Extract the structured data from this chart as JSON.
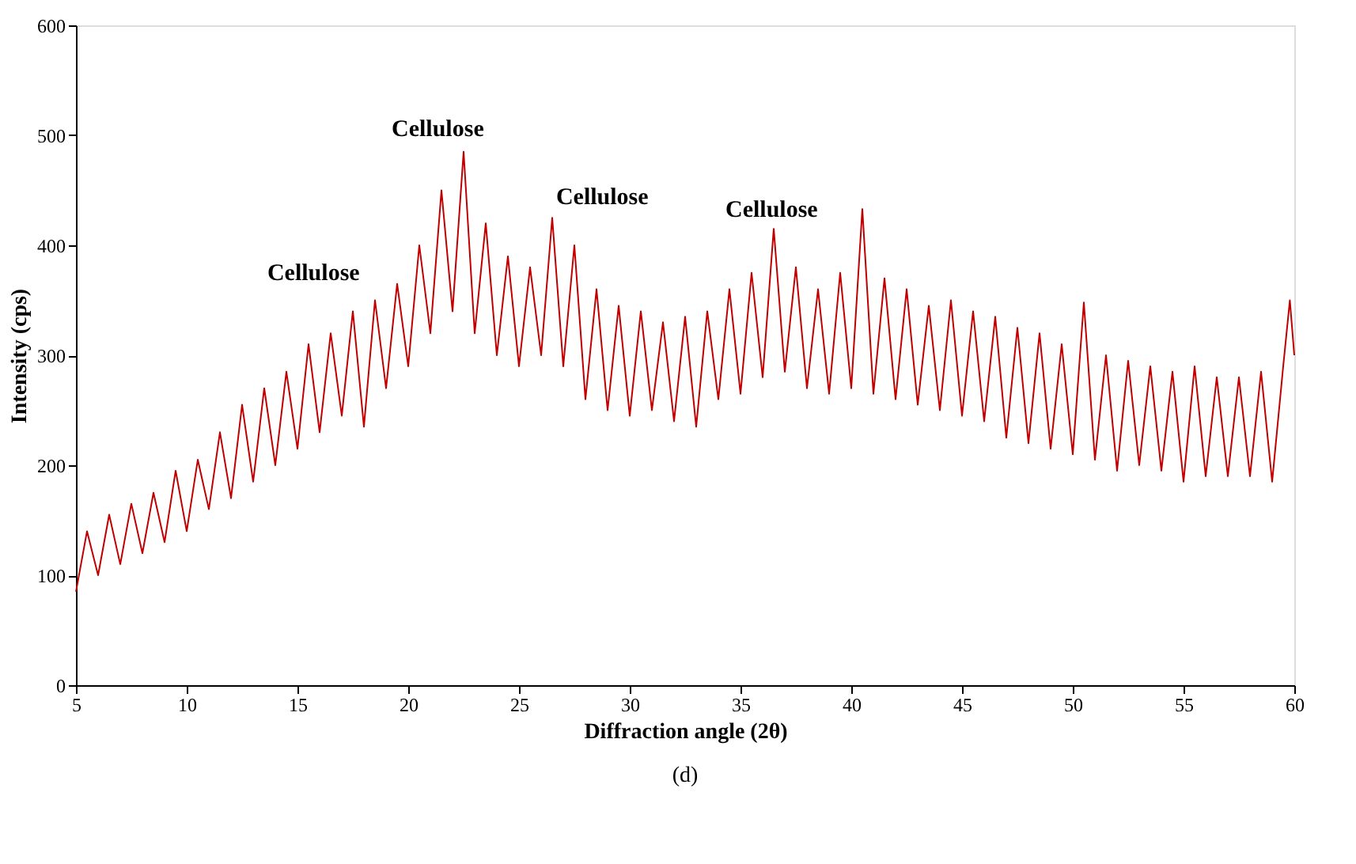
{
  "chart_data": {
    "type": "line",
    "xlabel": "Diffraction angle (2θ)",
    "ylabel": "Intensity (cps)",
    "x": [
      5,
      5.5,
      6,
      6.5,
      7,
      7.5,
      8,
      8.5,
      9,
      9.5,
      10,
      10.5,
      11,
      11.5,
      12,
      12.5,
      13,
      13.5,
      14,
      14.5,
      15,
      15.5,
      16,
      16.5,
      17,
      17.5,
      18,
      18.5,
      19,
      19.5,
      20,
      20.5,
      21,
      21.5,
      22,
      22.5,
      23,
      23.5,
      24,
      24.5,
      25,
      25.5,
      26,
      26.5,
      27,
      27.5,
      28,
      28.5,
      29,
      29.5,
      30,
      30.5,
      31,
      31.5,
      32,
      32.5,
      33,
      33.5,
      34,
      34.5,
      35,
      35.5,
      36,
      36.5,
      37,
      37.5,
      38,
      38.5,
      39,
      39.5,
      40,
      40.5,
      41,
      41.5,
      42,
      42.5,
      43,
      43.5,
      44,
      44.5,
      45,
      45.5,
      46,
      46.5,
      47,
      47.5,
      48,
      48.5,
      49,
      49.5,
      50,
      50.5,
      51,
      51.5,
      52,
      52.5,
      53,
      53.5,
      54,
      54.5,
      55,
      55.5,
      56,
      56.5,
      57,
      57.5,
      58,
      58.5,
      59,
      59.5,
      59.8,
      60
    ],
    "series": [
      {
        "color": "#c00000",
        "values": [
          85,
          140,
          100,
          155,
          110,
          165,
          120,
          175,
          130,
          195,
          140,
          205,
          160,
          230,
          170,
          255,
          185,
          270,
          200,
          285,
          215,
          310,
          230,
          320,
          245,
          340,
          235,
          350,
          270,
          365,
          290,
          400,
          320,
          450,
          340,
          485,
          320,
          420,
          300,
          390,
          290,
          380,
          300,
          425,
          290,
          400,
          260,
          360,
          250,
          345,
          245,
          340,
          250,
          330,
          240,
          335,
          235,
          340,
          260,
          360,
          265,
          375,
          280,
          415,
          285,
          380,
          270,
          360,
          265,
          375,
          270,
          433,
          265,
          370,
          260,
          360,
          255,
          345,
          250,
          350,
          245,
          340,
          240,
          335,
          225,
          325,
          220,
          320,
          215,
          310,
          210,
          348,
          205,
          300,
          195,
          295,
          200,
          290,
          195,
          285,
          185,
          290,
          190,
          280,
          190,
          280,
          190,
          285,
          185,
          290,
          350,
          300
        ]
      }
    ],
    "xlim": [
      5,
      60
    ],
    "xticks": [
      5,
      10,
      15,
      20,
      25,
      30,
      35,
      40,
      45,
      50,
      55,
      60
    ],
    "ylim": [
      0,
      600
    ],
    "yticks": [
      0,
      100,
      200,
      300,
      400,
      500,
      600
    ],
    "grid": false,
    "marker": "none",
    "line_style": "solid",
    "annotations": [
      "Cellulose",
      "Cellulose",
      "Cellulose",
      "Cellulose",
      "(d)"
    ]
  }
}
